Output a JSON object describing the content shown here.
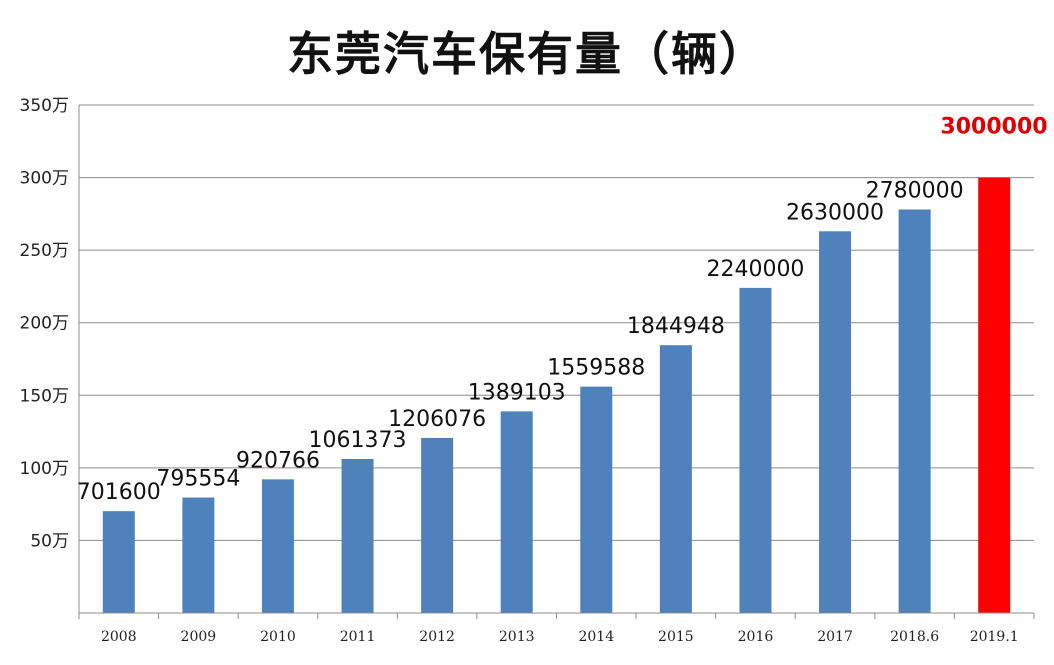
{
  "chart_data": {
    "type": "bar",
    "title": "东莞汽车保有量（辆）",
    "categories": [
      "2008",
      "2009",
      "2010",
      "2011",
      "2012",
      "2013",
      "2014",
      "2015",
      "2016",
      "2017",
      "2018.6",
      "2019.1"
    ],
    "values": [
      701600,
      795554,
      920766,
      1061373,
      1206076,
      1389103,
      1559588,
      1844948,
      2240000,
      2630000,
      2780000,
      3000000
    ],
    "data_labels": [
      "701600",
      "795554",
      "920766",
      "1061373",
      "1206076",
      "1389103",
      "1559588",
      "1844948",
      "2240000",
      "2630000",
      "2780000",
      "3000000"
    ],
    "ylim": [
      0,
      3500000
    ],
    "y_ticks": [
      {
        "value": 500000,
        "label": "50万"
      },
      {
        "value": 1000000,
        "label": "100万"
      },
      {
        "value": 1500000,
        "label": "150万"
      },
      {
        "value": 2000000,
        "label": "200万"
      },
      {
        "value": 2500000,
        "label": "250万"
      },
      {
        "value": 3000000,
        "label": "300万"
      },
      {
        "value": 3500000,
        "label": "350万"
      }
    ],
    "grid": true,
    "legend": "none",
    "bar_color": "#4f81bd",
    "highlight_index": 11,
    "highlight_color": "#ff0000",
    "highlight_label_color": "#e00000"
  }
}
